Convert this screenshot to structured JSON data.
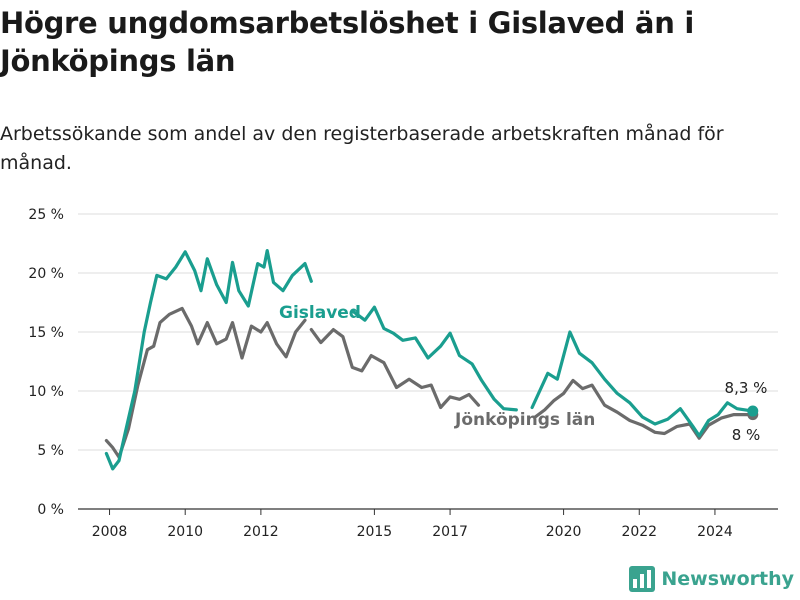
{
  "title": "Högre ungdomsarbetslöshet i Gislaved än i Jönköpings län",
  "subtitle": "Arbetssökande som andel av den registerbaserade arbetskraften månad för månad.",
  "logo": {
    "text": "Newsworthy",
    "icon": "bar-chart-icon",
    "color": "#3aa38f"
  },
  "chart_data": {
    "type": "line",
    "x_ticks": [
      "2008",
      "2010",
      "2012",
      "2015",
      "2017",
      "2020",
      "2022",
      "2024"
    ],
    "y_ticks": [
      "0 %",
      "5 %",
      "10 %",
      "15 %",
      "20 %",
      "25 %"
    ],
    "ylim": [
      0,
      25
    ],
    "xlim": [
      "2007-03",
      "2025-09"
    ],
    "grid": true,
    "series": [
      {
        "name": "Gislaved",
        "color": "#1a9e8f",
        "end_label": "8,3 %",
        "points": [
          [
            "2007-12",
            4.7
          ],
          [
            "2008-02",
            3.4
          ],
          [
            "2008-04",
            4.1
          ],
          [
            "2008-06",
            6.5
          ],
          [
            "2008-09",
            10.0
          ],
          [
            "2008-12",
            15.0
          ],
          [
            "2009-02",
            17.5
          ],
          [
            "2009-04",
            19.8
          ],
          [
            "2009-07",
            19.5
          ],
          [
            "2009-10",
            20.5
          ],
          [
            "2010-01",
            21.8
          ],
          [
            "2010-04",
            20.2
          ],
          [
            "2010-06",
            18.5
          ],
          [
            "2010-08",
            21.2
          ],
          [
            "2010-11",
            19.0
          ],
          [
            "2011-02",
            17.5
          ],
          [
            "2011-04",
            20.9
          ],
          [
            "2011-06",
            18.5
          ],
          [
            "2011-09",
            17.2
          ],
          [
            "2011-12",
            20.8
          ],
          [
            "2012-02",
            20.5
          ],
          [
            "2012-03",
            21.9
          ],
          [
            "2012-05",
            19.2
          ],
          [
            "2012-08",
            18.5
          ],
          [
            "2012-11",
            19.8
          ],
          [
            "2013-03",
            20.8
          ],
          [
            "2013-05",
            19.3
          ]
        ],
        "points_b": [
          [
            "2014-06",
            16.8
          ],
          [
            "2014-10",
            16.0
          ],
          [
            "2015-01",
            17.1
          ],
          [
            "2015-04",
            15.3
          ],
          [
            "2015-07",
            14.9
          ],
          [
            "2015-10",
            14.3
          ],
          [
            "2016-02",
            14.5
          ],
          [
            "2016-06",
            12.8
          ],
          [
            "2016-10",
            13.8
          ],
          [
            "2017-01",
            14.9
          ],
          [
            "2017-04",
            13.0
          ],
          [
            "2017-08",
            12.3
          ],
          [
            "2017-11",
            10.9
          ],
          [
            "2018-03",
            9.3
          ],
          [
            "2018-06",
            8.5
          ],
          [
            "2018-10",
            8.4
          ]
        ],
        "points_c": [
          [
            "2019-03",
            8.6
          ],
          [
            "2019-08",
            11.5
          ],
          [
            "2019-11",
            11.0
          ],
          [
            "2020-03",
            15.0
          ],
          [
            "2020-06",
            13.2
          ],
          [
            "2020-10",
            12.4
          ],
          [
            "2021-02",
            11.0
          ],
          [
            "2021-06",
            9.8
          ],
          [
            "2021-10",
            9.0
          ],
          [
            "2022-02",
            7.8
          ],
          [
            "2022-06",
            7.2
          ],
          [
            "2022-10",
            7.6
          ],
          [
            "2023-02",
            8.5
          ],
          [
            "2023-06",
            7.0
          ],
          [
            "2023-08",
            6.2
          ],
          [
            "2023-11",
            7.5
          ],
          [
            "2024-02",
            8.0
          ],
          [
            "2024-05",
            9.0
          ],
          [
            "2024-08",
            8.5
          ],
          [
            "2025-01",
            8.3
          ]
        ]
      },
      {
        "name": "Jönköpings län",
        "color": "#6b6b6b",
        "end_label": "8 %",
        "points": [
          [
            "2007-12",
            5.8
          ],
          [
            "2008-02",
            5.2
          ],
          [
            "2008-04",
            4.4
          ],
          [
            "2008-07",
            6.8
          ],
          [
            "2008-10",
            10.5
          ],
          [
            "2009-01",
            13.5
          ],
          [
            "2009-03",
            13.8
          ],
          [
            "2009-05",
            15.8
          ],
          [
            "2009-08",
            16.5
          ],
          [
            "2009-12",
            17.0
          ],
          [
            "2010-03",
            15.5
          ],
          [
            "2010-05",
            14.0
          ],
          [
            "2010-08",
            15.8
          ],
          [
            "2010-11",
            14.0
          ],
          [
            "2011-02",
            14.4
          ],
          [
            "2011-04",
            15.8
          ],
          [
            "2011-07",
            12.8
          ],
          [
            "2011-10",
            15.5
          ],
          [
            "2012-01",
            15.0
          ],
          [
            "2012-03",
            15.8
          ],
          [
            "2012-06",
            14.0
          ],
          [
            "2012-09",
            12.9
          ],
          [
            "2012-12",
            15.0
          ],
          [
            "2013-03",
            16.0
          ]
        ],
        "points_b": [
          [
            "2013-05",
            15.2
          ],
          [
            "2013-08",
            14.1
          ],
          [
            "2013-12",
            15.2
          ],
          [
            "2014-03",
            14.6
          ],
          [
            "2014-06",
            12.0
          ],
          [
            "2014-09",
            11.7
          ],
          [
            "2014-12",
            13.0
          ],
          [
            "2015-04",
            12.4
          ],
          [
            "2015-08",
            10.3
          ],
          [
            "2015-12",
            11.0
          ],
          [
            "2016-04",
            10.3
          ],
          [
            "2016-07",
            10.5
          ],
          [
            "2016-10",
            8.6
          ],
          [
            "2017-01",
            9.5
          ],
          [
            "2017-04",
            9.3
          ],
          [
            "2017-07",
            9.7
          ],
          [
            "2017-10",
            8.8
          ]
        ],
        "points_c": [
          [
            "2019-04",
            7.8
          ],
          [
            "2019-07",
            8.4
          ],
          [
            "2019-10",
            9.2
          ],
          [
            "2020-01",
            9.8
          ],
          [
            "2020-04",
            10.9
          ],
          [
            "2020-07",
            10.2
          ],
          [
            "2020-10",
            10.5
          ],
          [
            "2021-02",
            8.8
          ],
          [
            "2021-06",
            8.2
          ],
          [
            "2021-10",
            7.5
          ],
          [
            "2022-02",
            7.1
          ],
          [
            "2022-06",
            6.5
          ],
          [
            "2022-09",
            6.4
          ],
          [
            "2023-01",
            7.0
          ],
          [
            "2023-05",
            7.2
          ],
          [
            "2023-08",
            6.0
          ],
          [
            "2023-11",
            7.1
          ],
          [
            "2024-03",
            7.7
          ],
          [
            "2024-07",
            8.0
          ],
          [
            "2025-01",
            8.0
          ]
        ]
      }
    ]
  }
}
